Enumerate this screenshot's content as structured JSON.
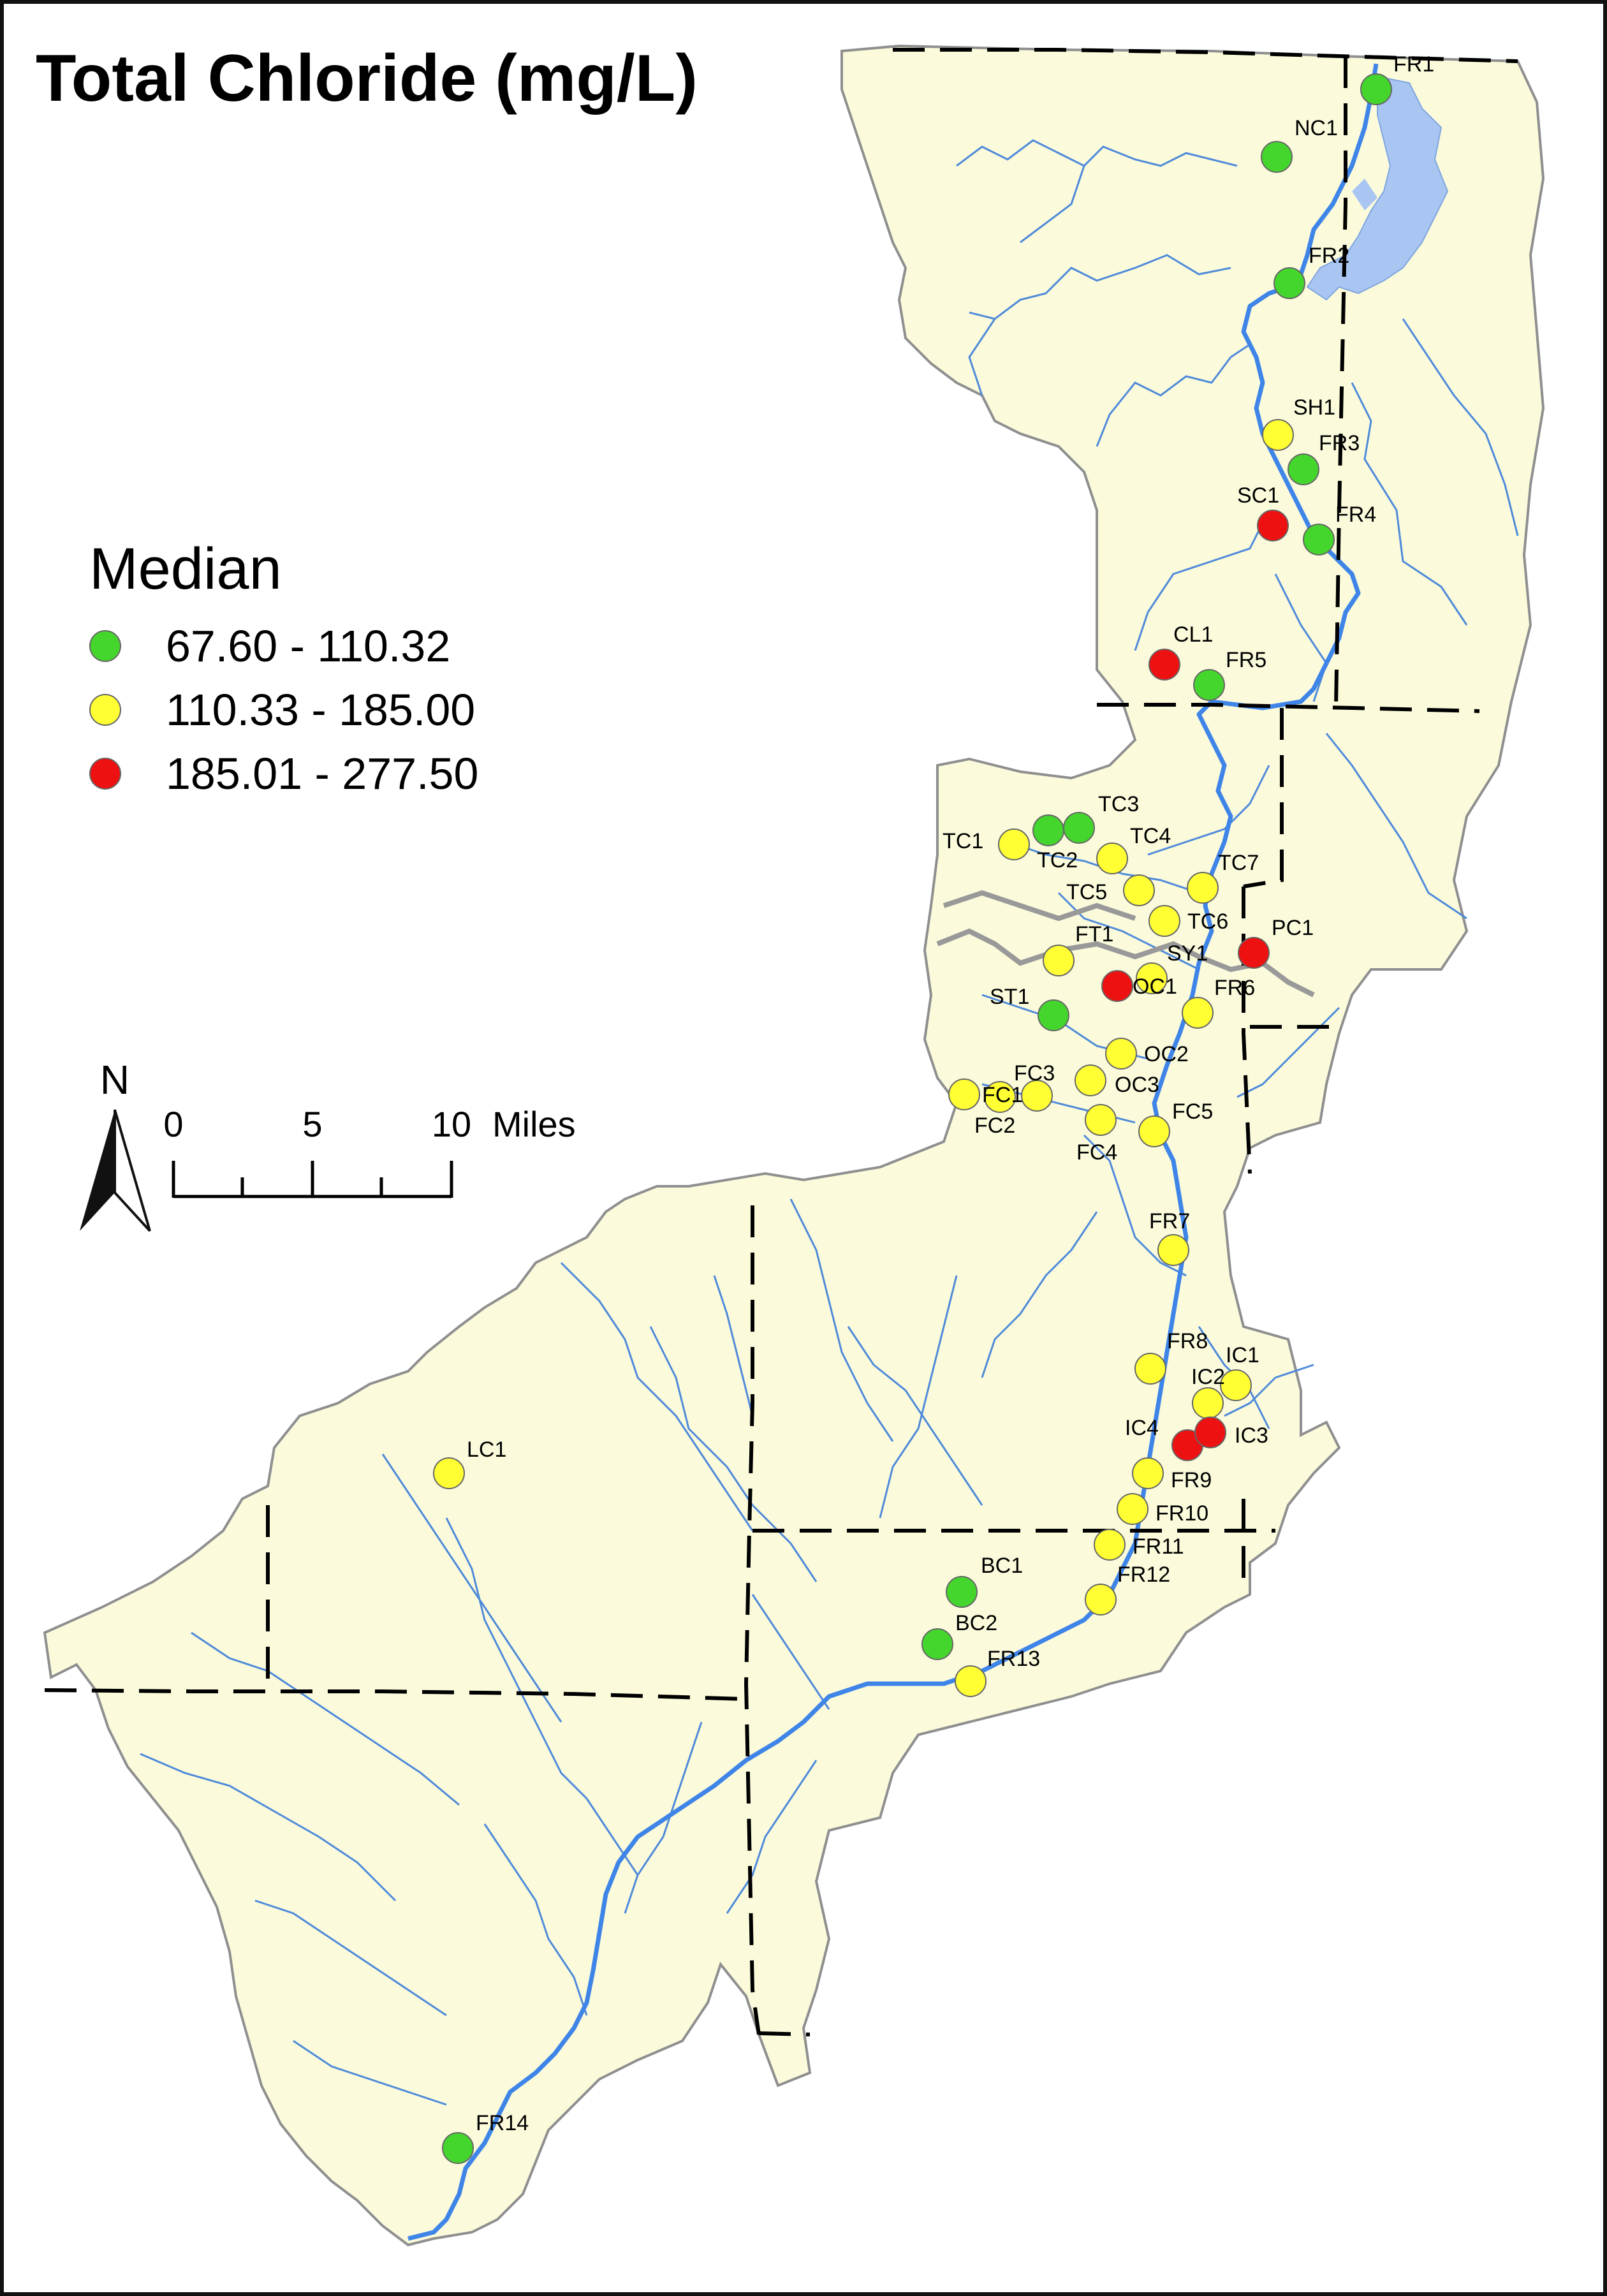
{
  "title": "Total Chloride (mg/L)",
  "legend": {
    "title": "Median",
    "classes": [
      {
        "label": "67.60 - 110.32",
        "color": "#44d62c"
      },
      {
        "label": "110.33 - 185.00",
        "color": "#ffff33"
      },
      {
        "label": "185.01 - 277.50",
        "color": "#ee1111"
      }
    ]
  },
  "north_arrow": {
    "label": "N"
  },
  "scale_bar": {
    "labels": [
      "0",
      "5",
      "10"
    ],
    "unit": "Miles"
  },
  "colors": {
    "land": "#fbfbdc",
    "water": "#3f85e8",
    "lake": "#a9c6f2",
    "stream": "#4f8ad9",
    "boundary": "#000000",
    "road": "#999999"
  },
  "sites": [
    {
      "id": "FR1",
      "class": 0
    },
    {
      "id": "NC1",
      "class": 0
    },
    {
      "id": "FR2",
      "class": 0
    },
    {
      "id": "SH1",
      "class": 1
    },
    {
      "id": "FR3",
      "class": 0
    },
    {
      "id": "SC1",
      "class": 2
    },
    {
      "id": "FR4",
      "class": 0
    },
    {
      "id": "CL1",
      "class": 2
    },
    {
      "id": "FR5",
      "class": 0
    },
    {
      "id": "TC1",
      "class": 1
    },
    {
      "id": "TC2",
      "class": 0
    },
    {
      "id": "TC3",
      "class": 0
    },
    {
      "id": "TC4",
      "class": 1
    },
    {
      "id": "TC5",
      "class": 1
    },
    {
      "id": "TC7",
      "class": 1
    },
    {
      "id": "TC6",
      "class": 1
    },
    {
      "id": "PC1",
      "class": 2
    },
    {
      "id": "FT1",
      "class": 1
    },
    {
      "id": "SY1",
      "class": 1
    },
    {
      "id": "OC1",
      "class": 2
    },
    {
      "id": "ST1",
      "class": 0
    },
    {
      "id": "FR6",
      "class": 1
    },
    {
      "id": "OC2",
      "class": 1
    },
    {
      "id": "OC3",
      "class": 1
    },
    {
      "id": "FC3",
      "class": 1
    },
    {
      "id": "FC1",
      "class": 1
    },
    {
      "id": "FC2",
      "class": 1
    },
    {
      "id": "FC4",
      "class": 1
    },
    {
      "id": "FC5",
      "class": 1
    },
    {
      "id": "FR7",
      "class": 1
    },
    {
      "id": "FR8",
      "class": 1
    },
    {
      "id": "IC1",
      "class": 1
    },
    {
      "id": "IC2",
      "class": 1
    },
    {
      "id": "IC4",
      "class": 2
    },
    {
      "id": "IC3",
      "class": 2
    },
    {
      "id": "FR9",
      "class": 1
    },
    {
      "id": "FR10",
      "class": 1
    },
    {
      "id": "FR11",
      "class": 1
    },
    {
      "id": "FR12",
      "class": 1
    },
    {
      "id": "BC1",
      "class": 0
    },
    {
      "id": "BC2",
      "class": 0
    },
    {
      "id": "FR13",
      "class": 1
    },
    {
      "id": "LC1",
      "class": 1
    },
    {
      "id": "FR14",
      "class": 0
    }
  ]
}
